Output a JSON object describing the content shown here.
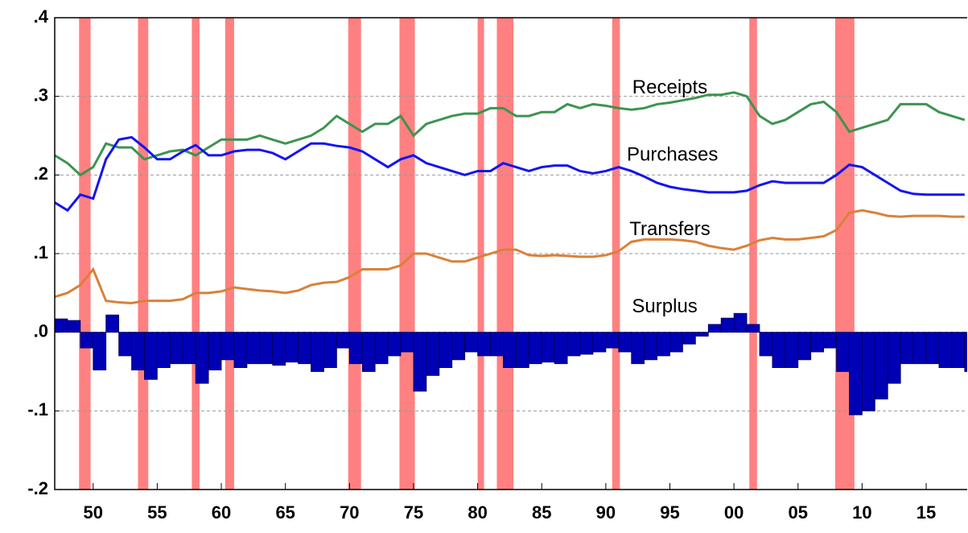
{
  "chart_data": {
    "type": "line",
    "x": [
      1947,
      1948,
      1949,
      1950,
      1951,
      1952,
      1953,
      1954,
      1955,
      1956,
      1957,
      1958,
      1959,
      1960,
      1961,
      1962,
      1963,
      1964,
      1965,
      1966,
      1967,
      1968,
      1969,
      1970,
      1971,
      1972,
      1973,
      1974,
      1975,
      1976,
      1977,
      1978,
      1979,
      1980,
      1981,
      1982,
      1983,
      1984,
      1985,
      1986,
      1987,
      1988,
      1989,
      1990,
      1991,
      1992,
      1993,
      1994,
      1995,
      1996,
      1997,
      1998,
      1999,
      2000,
      2001,
      2002,
      2003,
      2004,
      2005,
      2006,
      2007,
      2008,
      2009,
      2010,
      2011,
      2012,
      2013,
      2014,
      2015,
      2016,
      2017,
      2018
    ],
    "series": [
      {
        "name": "Receipts",
        "color": "#3d9450",
        "label_x": 1995.0,
        "label_y": 0.31,
        "values": [
          0.225,
          0.215,
          0.2,
          0.21,
          0.24,
          0.235,
          0.235,
          0.22,
          0.225,
          0.23,
          0.232,
          0.225,
          0.235,
          0.245,
          0.245,
          0.245,
          0.25,
          0.245,
          0.24,
          0.245,
          0.25,
          0.26,
          0.275,
          0.265,
          0.255,
          0.265,
          0.265,
          0.275,
          0.25,
          0.265,
          0.27,
          0.275,
          0.278,
          0.278,
          0.285,
          0.285,
          0.275,
          0.275,
          0.28,
          0.28,
          0.29,
          0.285,
          0.29,
          0.288,
          0.285,
          0.283,
          0.285,
          0.29,
          0.292,
          0.295,
          0.298,
          0.302,
          0.302,
          0.305,
          0.3,
          0.275,
          0.265,
          0.27,
          0.28,
          0.29,
          0.293,
          0.28,
          0.255,
          0.26,
          0.265,
          0.27,
          0.29,
          0.29,
          0.29,
          0.28,
          0.275,
          0.27
        ]
      },
      {
        "name": "Purchases",
        "color": "#1414f0",
        "label_x": 1995.2,
        "label_y": 0.225,
        "values": [
          0.165,
          0.155,
          0.175,
          0.17,
          0.22,
          0.245,
          0.248,
          0.235,
          0.22,
          0.22,
          0.23,
          0.238,
          0.225,
          0.225,
          0.23,
          0.232,
          0.232,
          0.228,
          0.22,
          0.23,
          0.24,
          0.24,
          0.237,
          0.235,
          0.23,
          0.22,
          0.21,
          0.22,
          0.225,
          0.215,
          0.21,
          0.205,
          0.2,
          0.205,
          0.205,
          0.215,
          0.21,
          0.205,
          0.21,
          0.212,
          0.212,
          0.205,
          0.202,
          0.205,
          0.21,
          0.205,
          0.198,
          0.19,
          0.185,
          0.182,
          0.18,
          0.178,
          0.178,
          0.178,
          0.18,
          0.187,
          0.192,
          0.19,
          0.19,
          0.19,
          0.19,
          0.2,
          0.213,
          0.21,
          0.2,
          0.19,
          0.18,
          0.176,
          0.175,
          0.175,
          0.175,
          0.175
        ]
      },
      {
        "name": "Transfers",
        "color": "#d9813a",
        "label_x": 1995.0,
        "label_y": 0.13,
        "values": [
          0.045,
          0.05,
          0.06,
          0.08,
          0.04,
          0.038,
          0.037,
          0.04,
          0.04,
          0.04,
          0.042,
          0.05,
          0.05,
          0.052,
          0.057,
          0.055,
          0.053,
          0.052,
          0.05,
          0.053,
          0.06,
          0.063,
          0.064,
          0.07,
          0.08,
          0.08,
          0.08,
          0.085,
          0.1,
          0.1,
          0.095,
          0.09,
          0.09,
          0.095,
          0.1,
          0.105,
          0.105,
          0.098,
          0.097,
          0.098,
          0.097,
          0.096,
          0.096,
          0.098,
          0.103,
          0.115,
          0.118,
          0.118,
          0.118,
          0.117,
          0.115,
          0.11,
          0.107,
          0.105,
          0.11,
          0.117,
          0.12,
          0.118,
          0.118,
          0.12,
          0.122,
          0.13,
          0.152,
          0.155,
          0.152,
          0.148,
          0.147,
          0.148,
          0.148,
          0.148,
          0.147,
          0.147
        ]
      },
      {
        "name": "Surplus",
        "type": "bar",
        "color": "#0000b4",
        "label_x": 1994.6,
        "label_y": 0.032,
        "values": [
          0.017,
          0.015,
          -0.02,
          -0.048,
          0.022,
          -0.03,
          -0.048,
          -0.06,
          -0.045,
          -0.04,
          -0.04,
          -0.065,
          -0.048,
          -0.035,
          -0.045,
          -0.04,
          -0.04,
          -0.042,
          -0.038,
          -0.04,
          -0.05,
          -0.045,
          -0.02,
          -0.04,
          -0.05,
          -0.04,
          -0.03,
          -0.025,
          -0.075,
          -0.055,
          -0.045,
          -0.035,
          -0.025,
          -0.03,
          -0.03,
          -0.045,
          -0.045,
          -0.04,
          -0.038,
          -0.04,
          -0.03,
          -0.028,
          -0.025,
          -0.02,
          -0.025,
          -0.04,
          -0.035,
          -0.03,
          -0.025,
          -0.015,
          -0.005,
          0.01,
          0.018,
          0.024,
          0.01,
          -0.03,
          -0.045,
          -0.045,
          -0.035,
          -0.025,
          -0.02,
          -0.05,
          -0.105,
          -0.1,
          -0.085,
          -0.065,
          -0.04,
          -0.04,
          -0.04,
          -0.045,
          -0.045,
          -0.05
        ]
      }
    ],
    "recessions": [
      [
        1948.9,
        1949.8
      ],
      [
        1953.5,
        1954.3
      ],
      [
        1957.7,
        1958.3
      ],
      [
        1960.3,
        1961.0
      ],
      [
        1969.9,
        1970.9
      ],
      [
        1973.9,
        1975.1
      ],
      [
        1980.0,
        1980.5
      ],
      [
        1981.5,
        1982.8
      ],
      [
        1990.5,
        1991.1
      ],
      [
        2001.2,
        2001.8
      ],
      [
        2007.9,
        2009.4
      ]
    ],
    "recession_color": "#ff8080",
    "xlim": [
      1947,
      2018.2
    ],
    "ylim": [
      -0.2,
      0.4
    ],
    "xticks": [
      {
        "value": 1950,
        "label": "50"
      },
      {
        "value": 1955,
        "label": "55"
      },
      {
        "value": 1960,
        "label": "60"
      },
      {
        "value": 1965,
        "label": "65"
      },
      {
        "value": 1970,
        "label": "70"
      },
      {
        "value": 1975,
        "label": "75"
      },
      {
        "value": 1980,
        "label": "80"
      },
      {
        "value": 1985,
        "label": "85"
      },
      {
        "value": 1990,
        "label": "90"
      },
      {
        "value": 1995,
        "label": "95"
      },
      {
        "value": 2000,
        "label": "00"
      },
      {
        "value": 2005,
        "label": "05"
      },
      {
        "value": 2010,
        "label": "10"
      },
      {
        "value": 2015,
        "label": "15"
      }
    ],
    "yticks": [
      {
        "value": -0.2,
        "label": "-.2"
      },
      {
        "value": -0.1,
        "label": "-.1"
      },
      {
        "value": 0,
        "label": ".0"
      },
      {
        "value": 0.1,
        "label": ".1"
      },
      {
        "value": 0.2,
        "label": ".2"
      },
      {
        "value": 0.3,
        "label": ".3"
      },
      {
        "value": 0.4,
        "label": ".4"
      }
    ],
    "grid": true
  }
}
